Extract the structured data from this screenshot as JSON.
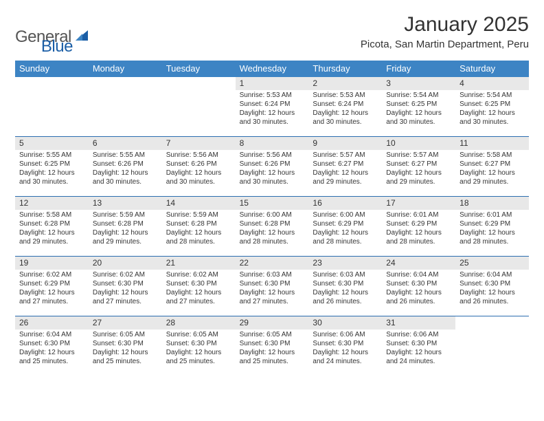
{
  "logo": {
    "word1": "General",
    "word2": "Blue"
  },
  "title": {
    "month_year": "January 2025",
    "location": "Picota, San Martin Department, Peru"
  },
  "colors": {
    "header_blue": "#3d84c4",
    "accent_blue": "#2a6db0",
    "logo_blue": "#1b5ea6",
    "daynum_bg": "#e8e8e8",
    "page_bg": "#ffffff",
    "text": "#222222"
  },
  "fonts": {
    "family": "Arial, Helvetica, sans-serif",
    "title_size_pt": 22,
    "location_size_pt": 11,
    "dayhead_size_pt": 10,
    "body_size_pt": 7.5
  },
  "calendar": {
    "type": "month-grid",
    "columns": 7,
    "day_names": [
      "Sunday",
      "Monday",
      "Tuesday",
      "Wednesday",
      "Thursday",
      "Friday",
      "Saturday"
    ],
    "weeks": [
      [
        null,
        null,
        null,
        {
          "n": "1",
          "sunrise": "5:53 AM",
          "sunset": "6:24 PM",
          "daylight": "12 hours and 30 minutes."
        },
        {
          "n": "2",
          "sunrise": "5:53 AM",
          "sunset": "6:24 PM",
          "daylight": "12 hours and 30 minutes."
        },
        {
          "n": "3",
          "sunrise": "5:54 AM",
          "sunset": "6:25 PM",
          "daylight": "12 hours and 30 minutes."
        },
        {
          "n": "4",
          "sunrise": "5:54 AM",
          "sunset": "6:25 PM",
          "daylight": "12 hours and 30 minutes."
        }
      ],
      [
        {
          "n": "5",
          "sunrise": "5:55 AM",
          "sunset": "6:25 PM",
          "daylight": "12 hours and 30 minutes."
        },
        {
          "n": "6",
          "sunrise": "5:55 AM",
          "sunset": "6:26 PM",
          "daylight": "12 hours and 30 minutes."
        },
        {
          "n": "7",
          "sunrise": "5:56 AM",
          "sunset": "6:26 PM",
          "daylight": "12 hours and 30 minutes."
        },
        {
          "n": "8",
          "sunrise": "5:56 AM",
          "sunset": "6:26 PM",
          "daylight": "12 hours and 30 minutes."
        },
        {
          "n": "9",
          "sunrise": "5:57 AM",
          "sunset": "6:27 PM",
          "daylight": "12 hours and 29 minutes."
        },
        {
          "n": "10",
          "sunrise": "5:57 AM",
          "sunset": "6:27 PM",
          "daylight": "12 hours and 29 minutes."
        },
        {
          "n": "11",
          "sunrise": "5:58 AM",
          "sunset": "6:27 PM",
          "daylight": "12 hours and 29 minutes."
        }
      ],
      [
        {
          "n": "12",
          "sunrise": "5:58 AM",
          "sunset": "6:28 PM",
          "daylight": "12 hours and 29 minutes."
        },
        {
          "n": "13",
          "sunrise": "5:59 AM",
          "sunset": "6:28 PM",
          "daylight": "12 hours and 29 minutes."
        },
        {
          "n": "14",
          "sunrise": "5:59 AM",
          "sunset": "6:28 PM",
          "daylight": "12 hours and 28 minutes."
        },
        {
          "n": "15",
          "sunrise": "6:00 AM",
          "sunset": "6:28 PM",
          "daylight": "12 hours and 28 minutes."
        },
        {
          "n": "16",
          "sunrise": "6:00 AM",
          "sunset": "6:29 PM",
          "daylight": "12 hours and 28 minutes."
        },
        {
          "n": "17",
          "sunrise": "6:01 AM",
          "sunset": "6:29 PM",
          "daylight": "12 hours and 28 minutes."
        },
        {
          "n": "18",
          "sunrise": "6:01 AM",
          "sunset": "6:29 PM",
          "daylight": "12 hours and 28 minutes."
        }
      ],
      [
        {
          "n": "19",
          "sunrise": "6:02 AM",
          "sunset": "6:29 PM",
          "daylight": "12 hours and 27 minutes."
        },
        {
          "n": "20",
          "sunrise": "6:02 AM",
          "sunset": "6:30 PM",
          "daylight": "12 hours and 27 minutes."
        },
        {
          "n": "21",
          "sunrise": "6:02 AM",
          "sunset": "6:30 PM",
          "daylight": "12 hours and 27 minutes."
        },
        {
          "n": "22",
          "sunrise": "6:03 AM",
          "sunset": "6:30 PM",
          "daylight": "12 hours and 27 minutes."
        },
        {
          "n": "23",
          "sunrise": "6:03 AM",
          "sunset": "6:30 PM",
          "daylight": "12 hours and 26 minutes."
        },
        {
          "n": "24",
          "sunrise": "6:04 AM",
          "sunset": "6:30 PM",
          "daylight": "12 hours and 26 minutes."
        },
        {
          "n": "25",
          "sunrise": "6:04 AM",
          "sunset": "6:30 PM",
          "daylight": "12 hours and 26 minutes."
        }
      ],
      [
        {
          "n": "26",
          "sunrise": "6:04 AM",
          "sunset": "6:30 PM",
          "daylight": "12 hours and 25 minutes."
        },
        {
          "n": "27",
          "sunrise": "6:05 AM",
          "sunset": "6:30 PM",
          "daylight": "12 hours and 25 minutes."
        },
        {
          "n": "28",
          "sunrise": "6:05 AM",
          "sunset": "6:30 PM",
          "daylight": "12 hours and 25 minutes."
        },
        {
          "n": "29",
          "sunrise": "6:05 AM",
          "sunset": "6:30 PM",
          "daylight": "12 hours and 25 minutes."
        },
        {
          "n": "30",
          "sunrise": "6:06 AM",
          "sunset": "6:30 PM",
          "daylight": "12 hours and 24 minutes."
        },
        {
          "n": "31",
          "sunrise": "6:06 AM",
          "sunset": "6:30 PM",
          "daylight": "12 hours and 24 minutes."
        },
        null
      ]
    ],
    "labels": {
      "sunrise": "Sunrise:",
      "sunset": "Sunset:",
      "daylight": "Daylight:"
    }
  }
}
